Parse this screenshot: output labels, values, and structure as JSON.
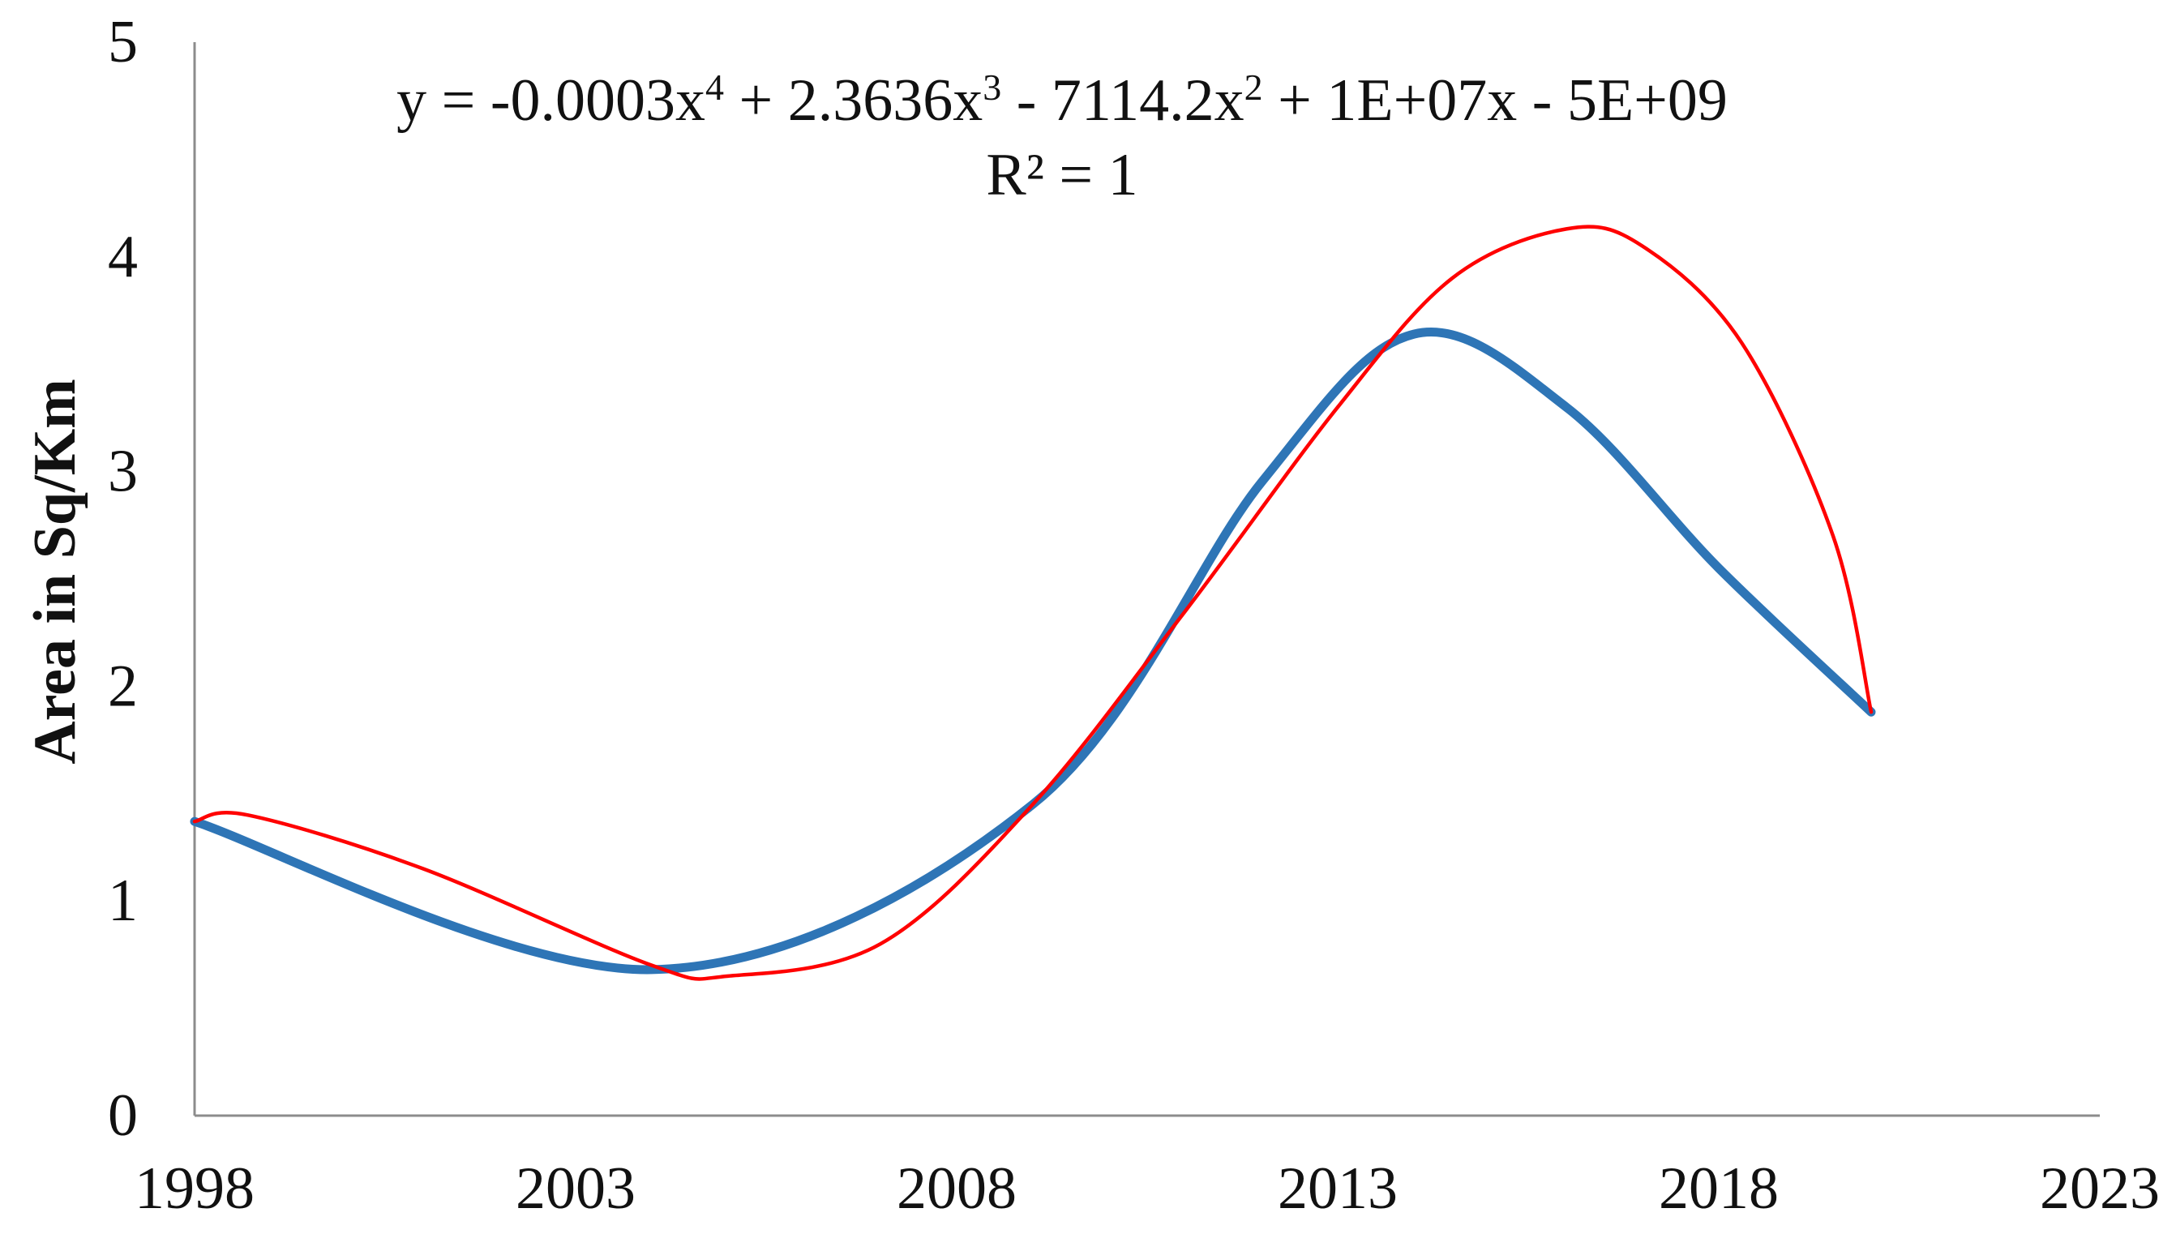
{
  "chart_data": {
    "type": "line",
    "title": "",
    "xlabel": "",
    "ylabel": "Area in Sq/Km",
    "xlim": [
      1998,
      2023
    ],
    "ylim": [
      0,
      5
    ],
    "x_ticks": [
      "1998",
      "2003",
      "2008",
      "2013",
      "2018",
      "2023"
    ],
    "y_ticks": [
      "0",
      "1",
      "2",
      "3",
      "4",
      "5"
    ],
    "grid": false,
    "legend": "none",
    "trendline_label": {
      "equation": "y = -0.0003x4 + 2.3636x3 - 7114.2x2 + 1E+07x - 5E+09",
      "equation_parts": [
        "y = -0.0003x",
        "4",
        " + 2.3636x",
        "3",
        " - 7114.2x",
        "2",
        " + 1E+07x - 5E+09"
      ],
      "r_squared": "R² = 1"
    },
    "series": [
      {
        "color": "#2e75b6",
        "style": "thick smoothed line",
        "x": [
          1998,
          2004,
          2009,
          2012,
          2014,
          2016,
          2018,
          2020
        ],
        "y": [
          1.37,
          0.68,
          1.45,
          2.95,
          3.64,
          3.3,
          2.55,
          1.88
        ]
      },
      {
        "color": "#ff0000",
        "style": "thin smoothed line (polynomial trendline)",
        "x": [
          1998,
          1998.7,
          2001,
          2004,
          2005,
          2007,
          2009,
          2011,
          2013,
          2014.5,
          2016,
          2017,
          2018.3,
          2019.5,
          2020
        ],
        "y": [
          1.37,
          1.4,
          1.15,
          0.7,
          0.65,
          0.8,
          1.45,
          2.35,
          3.3,
          3.9,
          4.13,
          4.05,
          3.6,
          2.7,
          1.88
        ]
      }
    ]
  }
}
